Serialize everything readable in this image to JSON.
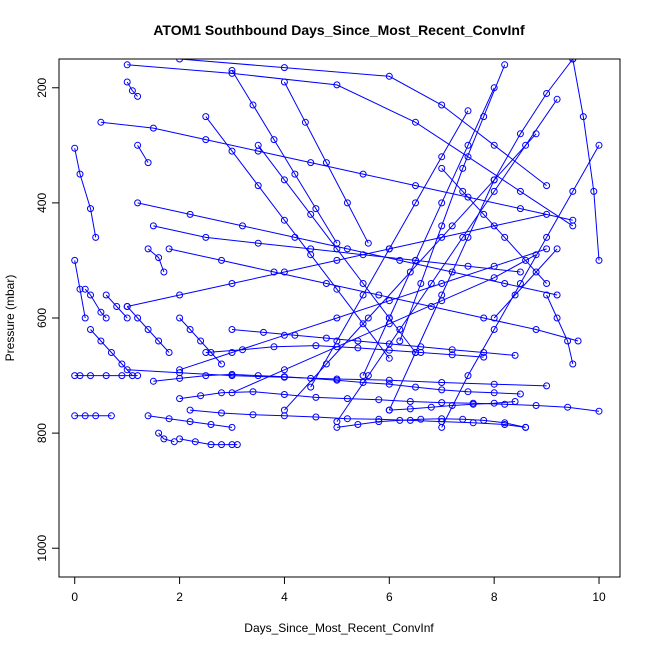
{
  "chart_data": {
    "type": "line",
    "title": "ATOM1 Southbound Days_Since_Most_Recent_ConvInf",
    "xlabel": "Days_Since_Most_Recent_ConvInf",
    "ylabel": "Pressure (mbar)",
    "xlim": [
      -0.3,
      10.4
    ],
    "ylim": [
      1050,
      150
    ],
    "y_reversed": true,
    "xticks": [
      0,
      2,
      4,
      6,
      8,
      10
    ],
    "yticks": [
      200,
      400,
      600,
      800,
      1000
    ],
    "grid": false,
    "legend": "none",
    "color": "#0000ff",
    "series": [
      {
        "x": [
          0.0,
          0.1,
          0.3,
          0.6,
          0.9,
          1.2
        ],
        "y": [
          700,
          700,
          700,
          700,
          700,
          700
        ]
      },
      {
        "x": [
          0.0,
          0.2,
          0.4,
          0.7
        ],
        "y": [
          770,
          770,
          770,
          770
        ]
      },
      {
        "x": [
          1.4,
          1.8,
          2.2,
          2.6,
          3.0
        ],
        "y": [
          770,
          775,
          780,
          785,
          790
        ]
      },
      {
        "x": [
          2.0,
          2.3,
          2.6,
          2.8,
          3.0,
          3.1
        ],
        "y": [
          810,
          815,
          820,
          820,
          820,
          820
        ]
      },
      {
        "x": [
          1.6,
          1.7,
          1.9
        ],
        "y": [
          800,
          810,
          815
        ]
      },
      {
        "x": [
          0.0,
          0.1,
          0.3,
          0.4
        ],
        "y": [
          305,
          350,
          410,
          460
        ]
      },
      {
        "x": [
          0.2,
          0.3,
          0.5,
          0.6
        ],
        "y": [
          550,
          560,
          590,
          600
        ]
      },
      {
        "x": [
          0.6,
          0.8,
          1.0
        ],
        "y": [
          560,
          580,
          600
        ]
      },
      {
        "x": [
          1.0,
          1.1,
          1.2
        ],
        "y": [
          190,
          205,
          215
        ]
      },
      {
        "x": [
          1.2,
          1.4
        ],
        "y": [
          300,
          330
        ]
      },
      {
        "x": [
          1.4,
          1.6,
          1.7
        ],
        "y": [
          480,
          495,
          520
        ]
      },
      {
        "x": [
          2.0,
          2.4,
          2.8,
          3.4,
          4.0,
          4.6,
          5.2,
          5.8,
          6.4,
          7.0,
          7.6,
          8.2,
          8.8,
          9.4,
          10.0
        ],
        "y": [
          740,
          735,
          730,
          728,
          733,
          738,
          740,
          742,
          745,
          747,
          748,
          750,
          752,
          755,
          762
        ]
      },
      {
        "x": [
          2.2,
          2.8,
          3.4,
          4.0,
          4.6,
          5.2,
          5.8,
          6.4,
          7.0,
          7.6,
          8.2,
          8.6
        ],
        "y": [
          760,
          765,
          768,
          770,
          772,
          775,
          776,
          778,
          780,
          782,
          785,
          790
        ]
      },
      {
        "x": [
          1.5,
          2.0,
          2.5,
          3.0,
          3.5,
          4.0,
          4.5,
          5.0,
          5.5,
          6.0,
          6.5,
          7.0,
          7.5,
          8.0,
          8.5
        ],
        "y": [
          710,
          705,
          700,
          698,
          700,
          702,
          705,
          708,
          712,
          715,
          720,
          725,
          728,
          730,
          732
        ]
      },
      {
        "x": [
          1.0,
          2.0,
          3.0,
          4.0,
          5.0,
          6.0,
          7.0,
          8.0,
          9.0
        ],
        "y": [
          690,
          695,
          700,
          703,
          706,
          708,
          712,
          715,
          718
        ]
      },
      {
        "x": [
          2.5,
          3.2,
          3.8,
          4.6,
          5.4,
          6.0,
          6.6,
          7.2,
          7.8
        ],
        "y": [
          660,
          655,
          650,
          648,
          652,
          656,
          660,
          664,
          668
        ]
      },
      {
        "x": [
          3.0,
          3.6,
          4.2,
          4.8,
          5.4,
          6.0,
          6.6,
          7.2,
          7.8,
          8.4
        ],
        "y": [
          620,
          625,
          630,
          635,
          640,
          645,
          650,
          655,
          660,
          665
        ]
      },
      {
        "x": [
          1.8,
          2.8,
          3.8,
          4.8,
          5.8,
          6.8,
          7.8,
          8.8,
          9.6
        ],
        "y": [
          480,
          500,
          520,
          540,
          560,
          580,
          600,
          620,
          640
        ]
      },
      {
        "x": [
          1.2,
          2.2,
          3.2,
          4.2,
          5.2,
          6.2,
          7.2,
          8.2,
          9.2
        ],
        "y": [
          400,
          420,
          440,
          460,
          480,
          500,
          520,
          540,
          560
        ]
      },
      {
        "x": [
          1.0,
          2.0,
          3.0,
          4.0,
          5.0,
          6.0,
          7.0,
          8.0,
          9.0
        ],
        "y": [
          580,
          560,
          540,
          520,
          500,
          480,
          460,
          440,
          420
        ]
      },
      {
        "x": [
          2.0,
          3.0,
          4.0,
          5.0,
          6.0,
          7.0,
          8.0,
          9.0
        ],
        "y": [
          690,
          660,
          630,
          600,
          570,
          540,
          510,
          480
        ]
      },
      {
        "x": [
          3.0,
          4.0,
          5.0,
          6.0,
          7.0,
          8.0,
          8.8
        ],
        "y": [
          730,
          690,
          650,
          610,
          570,
          530,
          490
        ]
      },
      {
        "x": [
          1.0,
          3.0,
          5.0,
          6.5,
          7.5,
          8.5,
          9.5
        ],
        "y": [
          160,
          175,
          195,
          260,
          320,
          380,
          440
        ]
      },
      {
        "x": [
          2.0,
          4.0,
          6.0,
          7.0,
          8.0,
          9.0
        ],
        "y": [
          150,
          165,
          180,
          230,
          300,
          370
        ]
      },
      {
        "x": [
          5.0,
          5.6,
          6.2,
          6.8,
          7.4,
          8.0,
          8.6,
          9.2
        ],
        "y": [
          780,
          700,
          620,
          540,
          460,
          380,
          300,
          220
        ]
      },
      {
        "x": [
          4.0,
          4.8,
          5.6,
          6.4,
          7.2,
          8.0,
          8.8
        ],
        "y": [
          760,
          680,
          600,
          520,
          440,
          360,
          280
        ]
      },
      {
        "x": [
          6.0,
          6.5,
          7.0,
          7.5,
          8.0,
          8.5,
          9.0,
          9.5
        ],
        "y": [
          760,
          660,
          560,
          460,
          360,
          280,
          210,
          150
        ]
      },
      {
        "x": [
          7.0,
          7.5,
          8.0,
          8.5,
          9.0,
          9.5,
          10.0
        ],
        "y": [
          790,
          700,
          620,
          540,
          460,
          380,
          300
        ]
      },
      {
        "x": [
          5.5,
          6.0,
          6.5,
          7.0,
          7.5,
          8.0
        ],
        "y": [
          700,
          600,
          500,
          400,
          300,
          200
        ]
      },
      {
        "x": [
          6.2,
          6.6,
          7.0,
          7.4,
          7.8,
          8.2
        ],
        "y": [
          640,
          540,
          440,
          340,
          250,
          160
        ]
      },
      {
        "x": [
          4.5,
          5.0,
          5.5,
          6.0,
          6.5,
          7.0,
          7.5
        ],
        "y": [
          720,
          640,
          560,
          480,
          400,
          320,
          240
        ]
      },
      {
        "x": [
          3.5,
          4.0,
          4.5,
          5.0,
          5.5,
          6.0,
          6.5
        ],
        "y": [
          300,
          360,
          420,
          480,
          540,
          600,
          660
        ]
      },
      {
        "x": [
          2.5,
          3.0,
          3.5,
          4.0,
          4.5,
          5.0,
          5.5,
          6.0
        ],
        "y": [
          250,
          310,
          370,
          430,
          490,
          550,
          610,
          670
        ]
      },
      {
        "x": [
          3.0,
          3.4,
          3.8,
          4.2,
          4.6,
          5.0
        ],
        "y": [
          170,
          230,
          290,
          350,
          410,
          470
        ]
      },
      {
        "x": [
          4.0,
          4.4,
          4.8,
          5.2,
          5.6
        ],
        "y": [
          190,
          260,
          330,
          400,
          470
        ]
      },
      {
        "x": [
          9.5,
          9.7,
          9.9,
          10.0
        ],
        "y": [
          150,
          250,
          380,
          500
        ]
      },
      {
        "x": [
          9.0,
          9.2,
          9.4,
          9.5
        ],
        "y": [
          560,
          600,
          640,
          680
        ]
      },
      {
        "x": [
          0.3,
          0.5,
          0.7,
          0.9,
          1.1
        ],
        "y": [
          620,
          640,
          660,
          680,
          700
        ]
      },
      {
        "x": [
          0.0,
          0.1,
          0.2
        ],
        "y": [
          500,
          550,
          600
        ]
      },
      {
        "x": [
          1.0,
          1.2,
          1.4,
          1.6,
          1.8
        ],
        "y": [
          580,
          600,
          620,
          640,
          660
        ]
      },
      {
        "x": [
          2.0,
          2.2,
          2.4,
          2.6,
          2.8
        ],
        "y": [
          600,
          620,
          640,
          660,
          680
        ]
      },
      {
        "x": [
          5.0,
          5.4,
          5.8,
          6.2,
          6.6,
          7.0,
          7.4,
          7.8,
          8.2,
          8.6
        ],
        "y": [
          790,
          785,
          780,
          778,
          776,
          775,
          776,
          778,
          782,
          790
        ]
      },
      {
        "x": [
          6.0,
          6.4,
          6.8,
          7.2,
          7.6,
          8.0,
          8.4
        ],
        "y": [
          760,
          758,
          755,
          752,
          750,
          748,
          745
        ]
      },
      {
        "x": [
          0.5,
          1.5,
          2.5,
          3.5,
          4.5,
          5.5,
          6.5,
          7.5,
          8.5,
          9.5
        ],
        "y": [
          260,
          270,
          290,
          310,
          330,
          350,
          370,
          390,
          410,
          430
        ]
      },
      {
        "x": [
          1.5,
          2.5,
          3.5,
          4.5,
          5.5,
          6.5,
          7.5,
          8.5
        ],
        "y": [
          440,
          460,
          470,
          480,
          490,
          500,
          510,
          520
        ]
      },
      {
        "x": [
          7.0,
          7.4,
          7.8,
          8.2,
          8.6,
          9.0
        ],
        "y": [
          340,
          380,
          420,
          460,
          500,
          540
        ]
      },
      {
        "x": [
          8.0,
          8.4,
          8.8,
          9.2
        ],
        "y": [
          600,
          560,
          520,
          480
        ]
      }
    ]
  }
}
